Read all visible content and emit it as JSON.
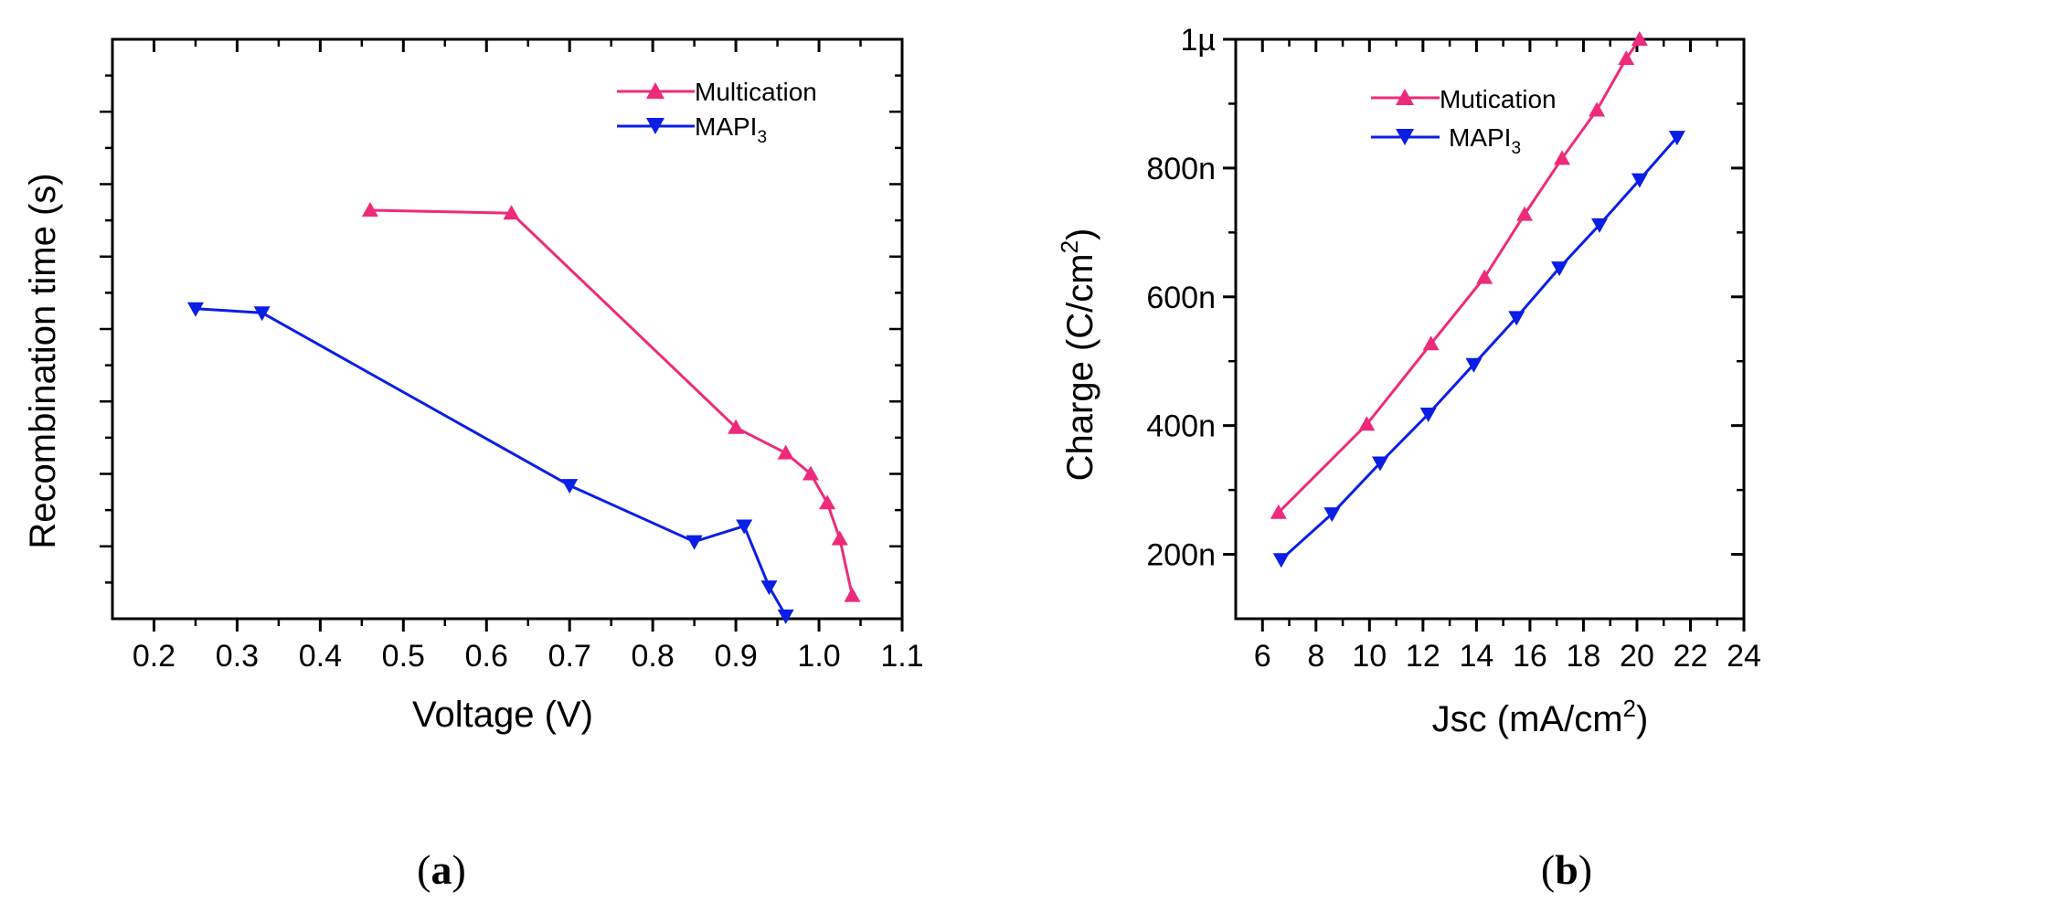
{
  "chart_data": [
    {
      "type": "line",
      "panel_label": "(a)",
      "panel_label_letter": "a",
      "xlabel": "Voltage (V)",
      "ylabel": "Recombination time (s)",
      "xlim": [
        0.15,
        1.1
      ],
      "ylim": [
        0,
        1
      ],
      "x_ticks": [
        0.2,
        0.3,
        0.4,
        0.5,
        0.6,
        0.7,
        0.8,
        0.9,
        1.0,
        1.1
      ],
      "x_tick_labels": [
        "0.2",
        "0.3",
        "0.4",
        "0.5",
        "0.6",
        "0.7",
        "0.8",
        "0.9",
        "1.0",
        "1.1"
      ],
      "y_tick_labels_shown": false,
      "legend_position": "top-right",
      "series": [
        {
          "name": "Multication",
          "color": "#ee2a7b",
          "marker": "triangle-up",
          "points": [
            [
              0.46,
              0.705
            ],
            [
              0.63,
              0.7
            ],
            [
              0.9,
              0.33
            ],
            [
              0.96,
              0.286
            ],
            [
              0.99,
              0.25
            ],
            [
              1.01,
              0.2
            ],
            [
              1.025,
              0.138
            ],
            [
              1.04,
              0.04
            ]
          ]
        },
        {
          "name": "MAPI",
          "name_sub": "3",
          "color": "#0a1ee6",
          "marker": "triangle-down",
          "points": [
            [
              0.25,
              0.535
            ],
            [
              0.33,
              0.528
            ],
            [
              0.7,
              0.23
            ],
            [
              0.85,
              0.133
            ],
            [
              0.91,
              0.16
            ],
            [
              0.94,
              0.055
            ],
            [
              0.96,
              0.005
            ]
          ]
        }
      ]
    },
    {
      "type": "line",
      "panel_label": "(b)",
      "panel_label_letter": "b",
      "xlabel": "Jsc (mA/cm",
      "xlabel_sup": "2",
      "xlabel_tail": ")",
      "ylabel": "Charge (C/cm",
      "ylabel_sup": "2",
      "ylabel_tail": ")",
      "xlim": [
        5,
        24
      ],
      "ylim": [
        100,
        1000
      ],
      "x_ticks": [
        6,
        8,
        10,
        12,
        14,
        16,
        18,
        20,
        22,
        24
      ],
      "x_tick_labels": [
        "6",
        "8",
        "10",
        "12",
        "14",
        "16",
        "18",
        "20",
        "22",
        "24"
      ],
      "y_ticks": [
        200,
        400,
        600,
        800,
        1000
      ],
      "y_tick_labels": [
        "200n",
        "400n",
        "600n",
        "800n",
        "1µ"
      ],
      "legend_position": "top-left",
      "series": [
        {
          "name": "Mutication",
          "color": "#ee2a7b",
          "marker": "triangle-up",
          "points": [
            [
              6.6,
              265
            ],
            [
              9.9,
              402
            ],
            [
              12.3,
              527
            ],
            [
              14.3,
              630
            ],
            [
              15.8,
              728
            ],
            [
              17.2,
              815
            ],
            [
              18.5,
              890
            ],
            [
              19.6,
              970
            ],
            [
              20.1,
              1000
            ]
          ]
        },
        {
          "name": "MAPI",
          "name_sub": "3",
          "color": "#0a1ee6",
          "marker": "triangle-down",
          "points": [
            [
              6.7,
              192
            ],
            [
              8.6,
              263
            ],
            [
              10.4,
              342
            ],
            [
              12.2,
              418
            ],
            [
              13.9,
              495
            ],
            [
              15.5,
              568
            ],
            [
              17.1,
              645
            ],
            [
              18.6,
              712
            ],
            [
              20.1,
              782
            ],
            [
              21.5,
              848
            ]
          ]
        }
      ]
    }
  ]
}
